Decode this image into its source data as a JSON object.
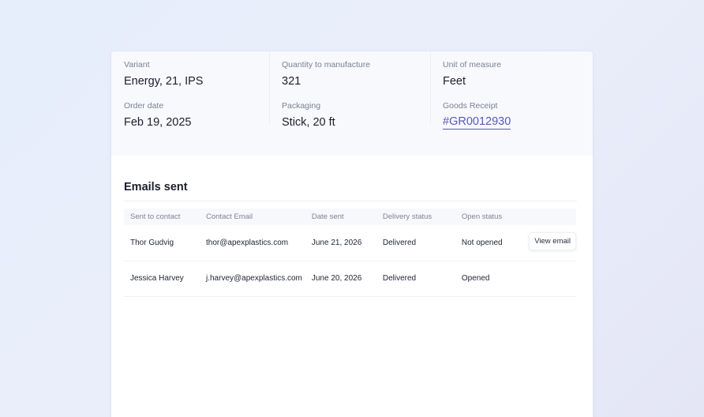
{
  "details": {
    "columns": [
      {
        "fields": [
          {
            "label": "Variant",
            "value": "Energy, 21, IPS"
          },
          {
            "label": "Order date",
            "value": "Feb 19, 2025"
          }
        ]
      },
      {
        "fields": [
          {
            "label": "Quantity to manufacture",
            "value": "321"
          },
          {
            "label": "Packaging",
            "value": "Stick, 20 ft"
          }
        ]
      },
      {
        "fields": [
          {
            "label": "Unit of measure",
            "value": "Feet"
          },
          {
            "label": "Goods Receipt",
            "value": "#GR0012930",
            "is_link": true
          }
        ]
      }
    ]
  },
  "emails": {
    "title": "Emails sent",
    "columns": [
      "Sent to contact",
      "Contact Email",
      "Date sent",
      "Delivery status",
      "Open status",
      ""
    ],
    "rows": [
      {
        "contact": "Thor Gudvig",
        "email": "thor@apexplastics.com",
        "date": "June 21, 2026",
        "delivery": "Delivered",
        "open": "Not opened",
        "action": "View email"
      },
      {
        "contact": "Jessica Harvey",
        "email": "j.harvey@apexplastics.com",
        "date": "June 20, 2026",
        "delivery": "Delivered",
        "open": "Opened",
        "action": null
      }
    ]
  },
  "colors": {
    "link": "#5b58b8",
    "text_primary": "#1b1f2e",
    "text_muted": "#7a8194",
    "details_bg": "#f7f9fd"
  }
}
